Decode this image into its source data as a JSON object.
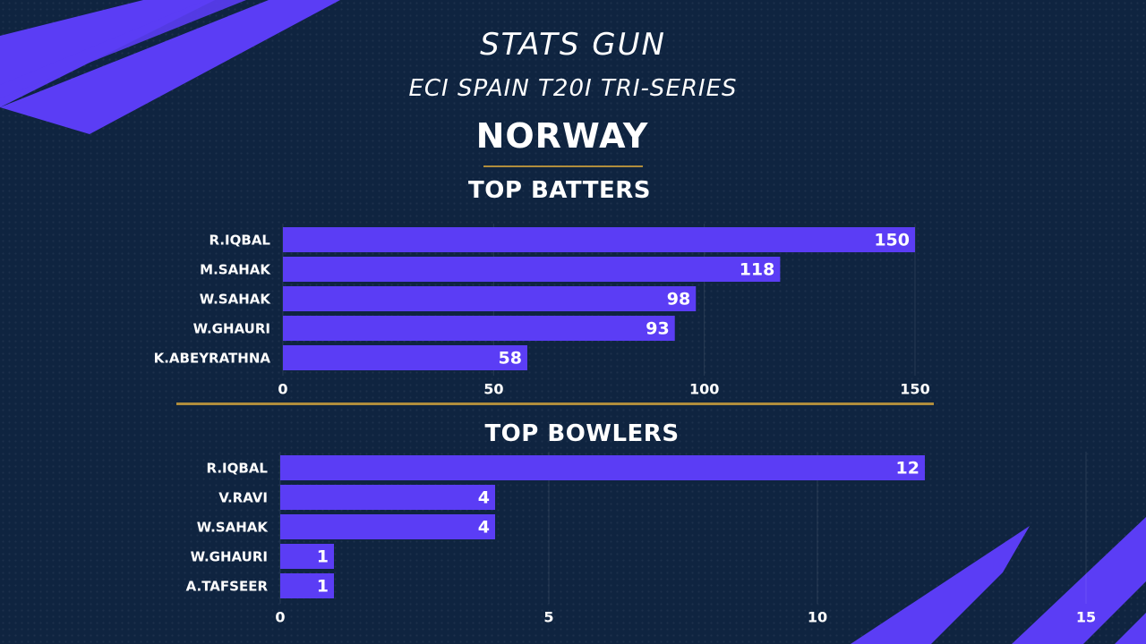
{
  "header": {
    "brand": "STATS GUN",
    "subtitle": "ECI SPAIN T20I TRI-SERIES",
    "team": "NORWAY"
  },
  "colors": {
    "background": "#0f2440",
    "bar": "#5b3df5",
    "accent_line": "#b08d3c",
    "text": "#ffffff"
  },
  "chart_data": [
    {
      "type": "bar",
      "orientation": "horizontal",
      "title": "TOP BATTERS",
      "categories": [
        "R.IQBAL",
        "M.SAHAK",
        "W.SAHAK",
        "W.GHAURI",
        "K.ABEYRATHNA"
      ],
      "values": [
        150,
        118,
        98,
        93,
        58
      ],
      "xlim": [
        0,
        150
      ],
      "xticks": [
        0,
        50,
        100,
        150
      ],
      "grid": true,
      "data_labels": true
    },
    {
      "type": "bar",
      "orientation": "horizontal",
      "title": "TOP BOWLERS",
      "categories": [
        "R.IQBAL",
        "V.RAVI",
        "W.SAHAK",
        "W.GHAURI",
        "A.TAFSEER"
      ],
      "values": [
        12,
        4,
        4,
        1,
        1
      ],
      "xlim": [
        0,
        15
      ],
      "xticks": [
        0,
        5,
        10,
        15
      ],
      "grid": true,
      "data_labels": true
    }
  ]
}
